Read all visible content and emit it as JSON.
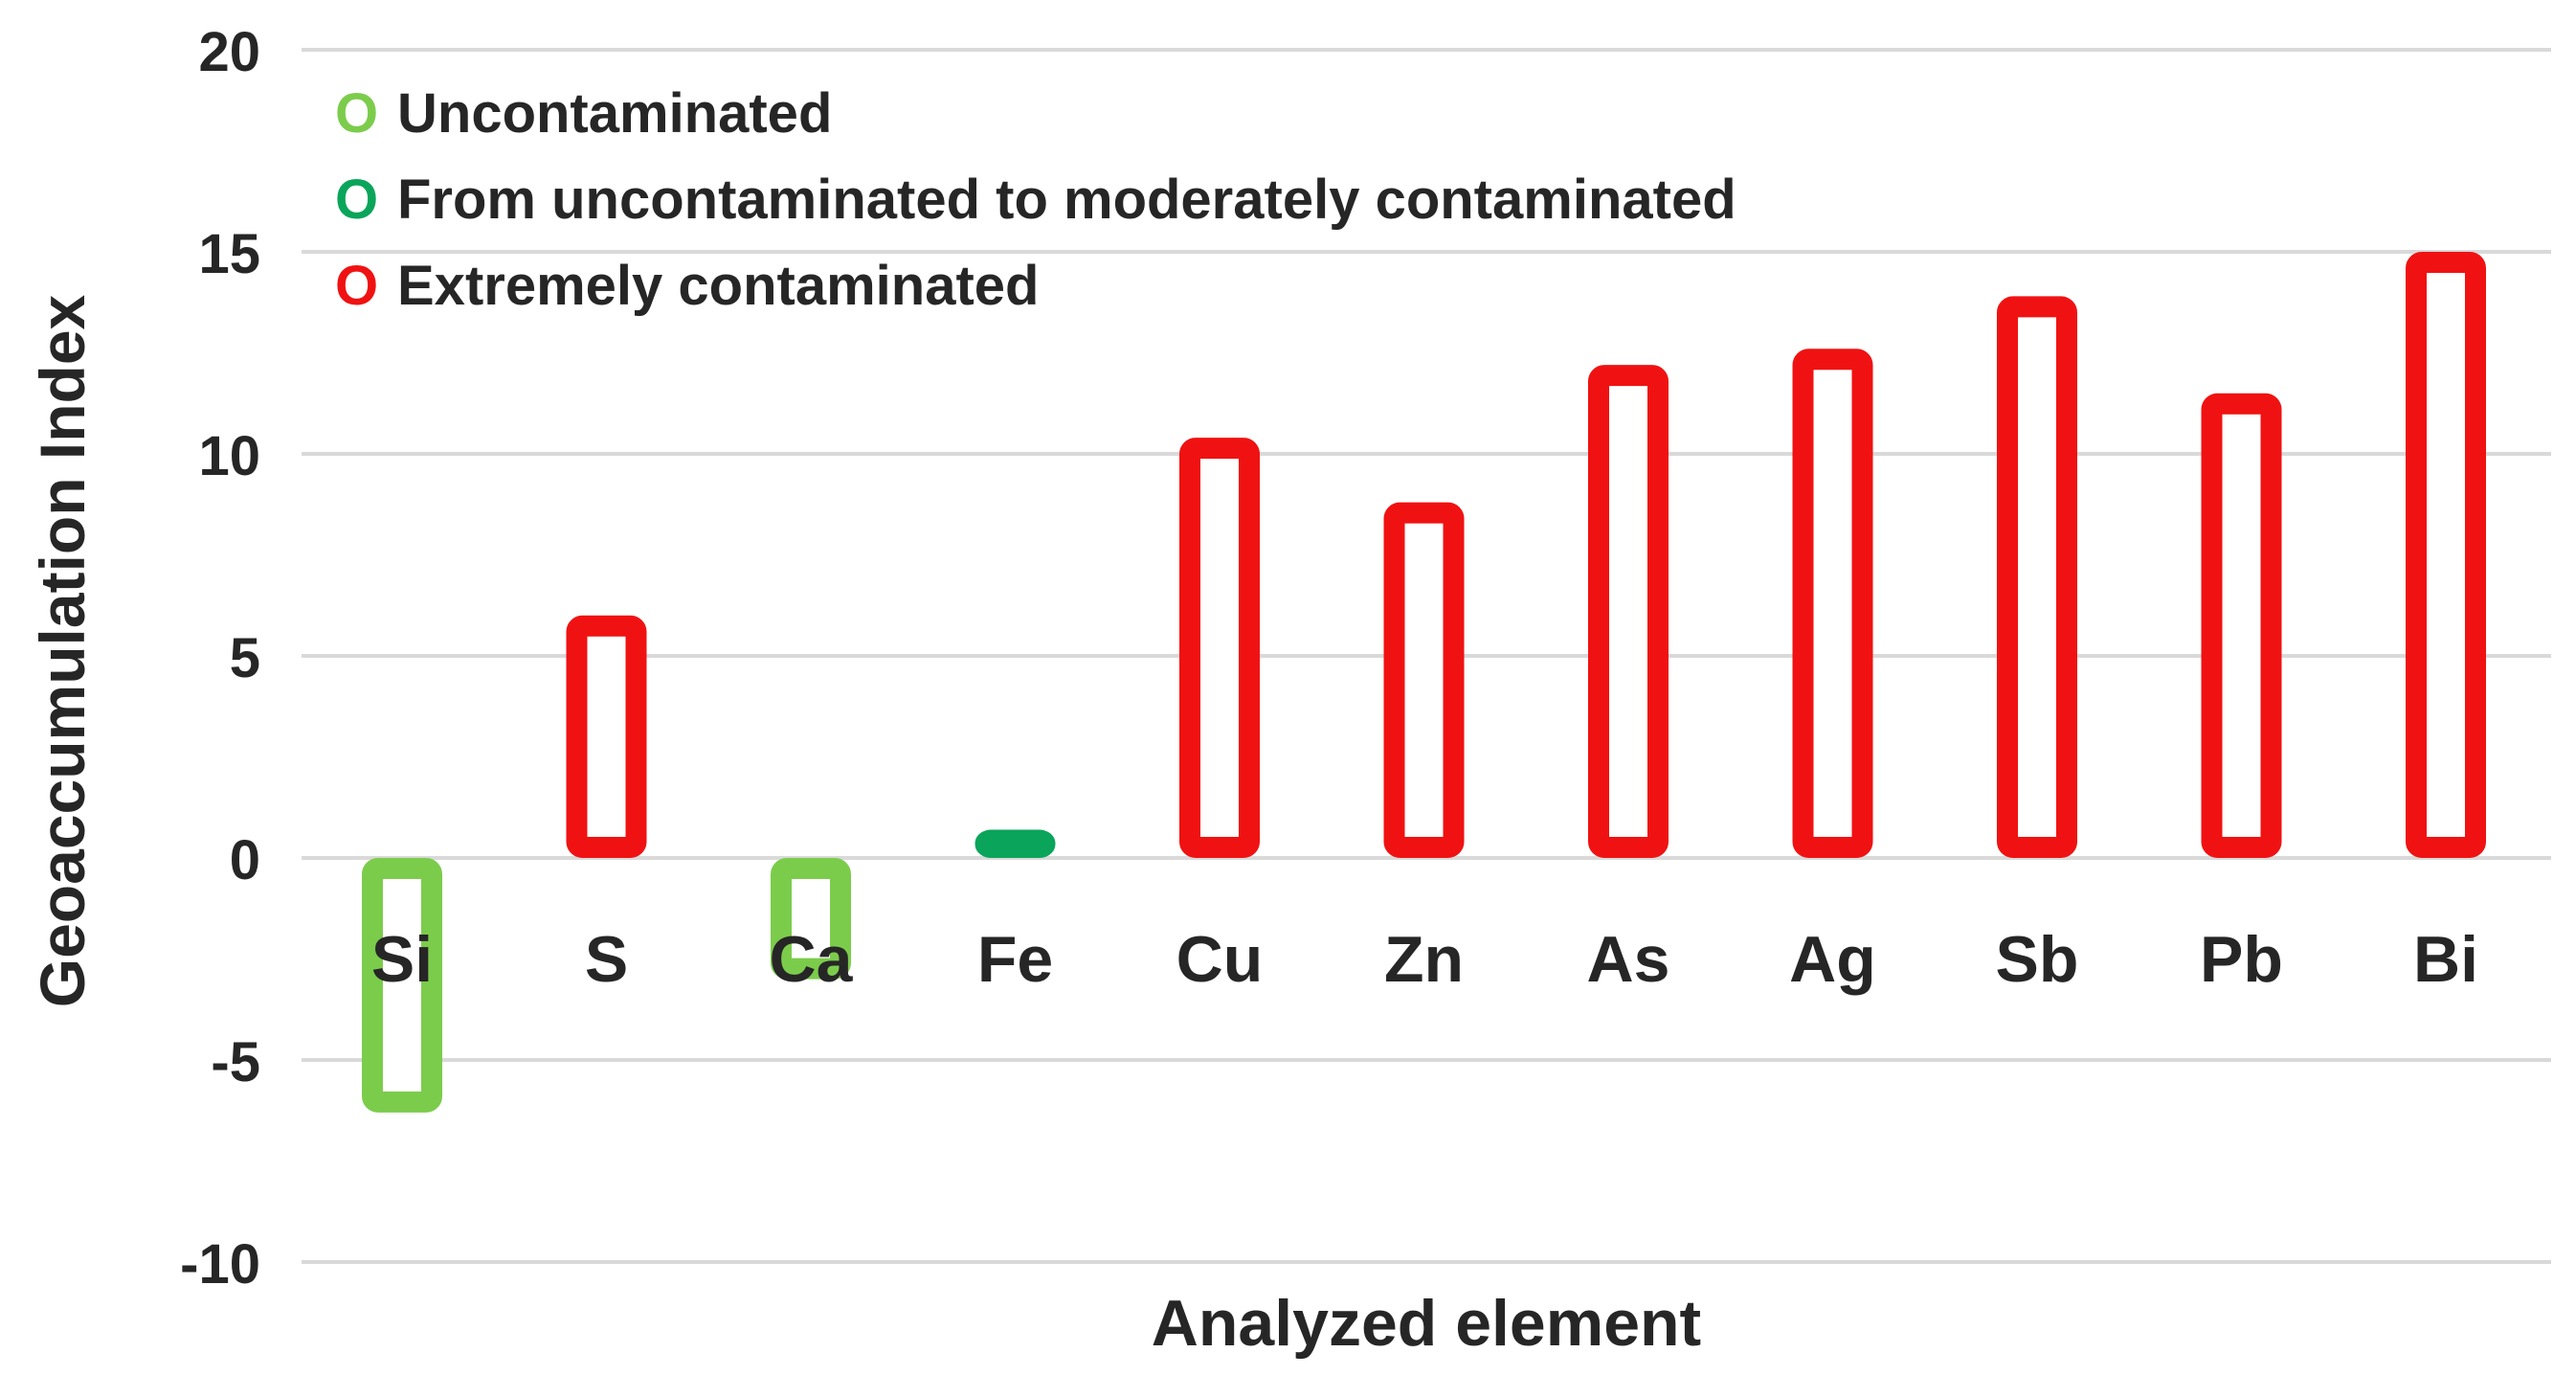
{
  "chart_data": {
    "type": "bar",
    "title": "",
    "xlabel": "Analyzed element",
    "ylabel": "Geoaccumulation Index",
    "ylim": [
      -10,
      20
    ],
    "yticks": [
      "20",
      "15",
      "10",
      "5",
      "0",
      "-5",
      "-10"
    ],
    "grid": true,
    "legend_position": "top-left",
    "categories": [
      "Si",
      "S",
      "Ca",
      "Fe",
      "Cu",
      "Zn",
      "As",
      "Ag",
      "Sb",
      "Pb",
      "Bi"
    ],
    "values": [
      -6.3,
      6.0,
      -3.0,
      0.7,
      10.4,
      8.8,
      12.2,
      12.6,
      13.9,
      11.5,
      15.0
    ],
    "classes": [
      "Uncontaminated",
      "Extremely contaminated",
      "Uncontaminated",
      "From uncontaminated to moderately contaminated",
      "Extremely contaminated",
      "Extremely contaminated",
      "Extremely contaminated",
      "Extremely contaminated",
      "Extremely contaminated",
      "Extremely contaminated",
      "Extremely contaminated"
    ],
    "legend": [
      {
        "label": "Uncontaminated",
        "marker": "O",
        "color": "#7ccc4c"
      },
      {
        "label": "From uncontaminated to moderately contaminated",
        "marker": "O",
        "color": "#0aa55a"
      },
      {
        "label": "Extremely contaminated",
        "marker": "O",
        "color": "#f01212"
      }
    ],
    "colors": {
      "grid": "#d9d9d9",
      "text": "#262626",
      "Uncontaminated": "#7ccc4c",
      "From uncontaminated to moderately contaminated": "#0aa55a",
      "Extremely contaminated": "#f01212"
    }
  }
}
